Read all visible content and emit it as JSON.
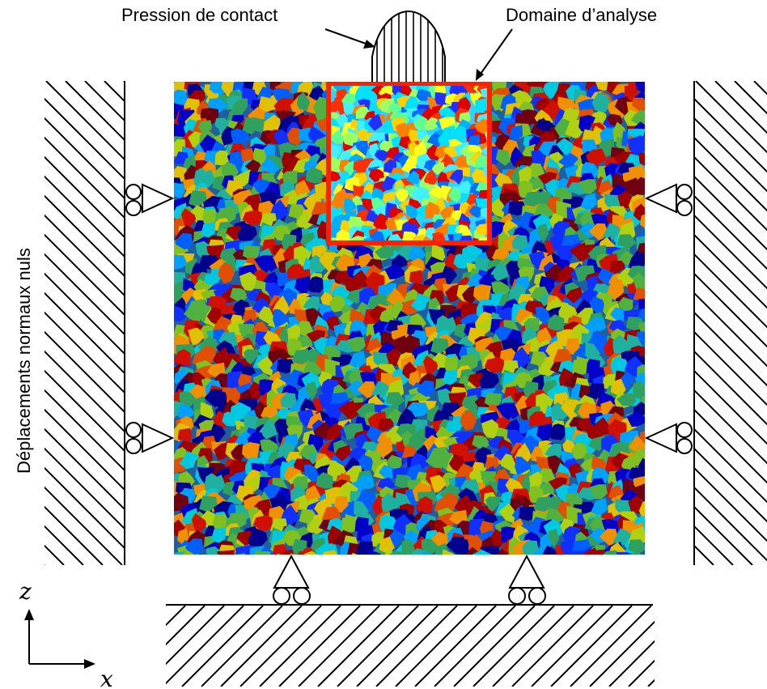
{
  "labels": {
    "contact_pressure": "Pression de contact",
    "analysis_domain": "Domaine d’analyse",
    "normal_displacements": "Déplacements normaux nuls",
    "axis_z": "z",
    "axis_x": "x"
  },
  "colors": {
    "grain_palette": [
      "#00008f",
      "#0000c8",
      "#1030ff",
      "#0060ff",
      "#00a0ff",
      "#00c8e0",
      "#20b0a0",
      "#30a060",
      "#50b040",
      "#80c020",
      "#b0d010",
      "#e0c000",
      "#f09000",
      "#e05000",
      "#d01000",
      "#a00000",
      "#700010"
    ],
    "analysis_palette": [
      "#00e0ff",
      "#40f0ff",
      "#00b0ff",
      "#0070ff",
      "#2030ff",
      "#ffff20",
      "#ffd000",
      "#ff8000",
      "#ff3000",
      "#e00000",
      "#a0ff60",
      "#60ff90"
    ],
    "analysis_border": "#ff2000"
  },
  "icons": [
    "roller-support-icon",
    "ground-hatch-icon",
    "wall-hatch-icon",
    "pressure-distribution-icon"
  ]
}
